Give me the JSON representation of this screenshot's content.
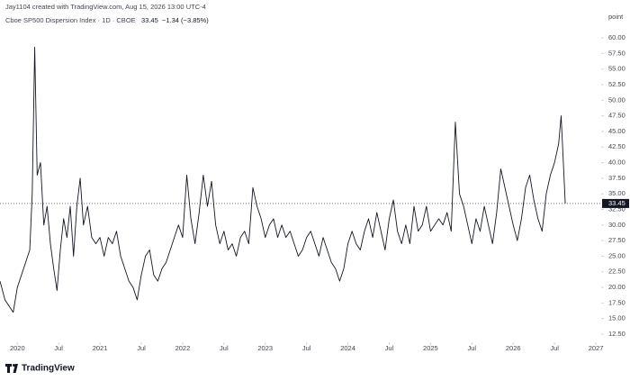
{
  "header": {
    "credit": "Jay1104 created with TradingView.com, Aug 15, 2026 13:00 UTC-4"
  },
  "chart_data": {
    "type": "line",
    "legend": {
      "symbol": "Cboe SP500 Dispersion Index · 1D · CBOE",
      "last": "33.45",
      "change": "−1.34 (−3.85%)"
    },
    "y_axis_label": "point",
    "x": [
      2019.79,
      2019.85,
      2019.9,
      2019.95,
      2020.0,
      2020.05,
      2020.1,
      2020.15,
      2020.18,
      2020.21,
      2020.24,
      2020.28,
      2020.32,
      2020.36,
      2020.4,
      2020.44,
      2020.48,
      2020.52,
      2020.56,
      2020.6,
      2020.64,
      2020.68,
      2020.72,
      2020.76,
      2020.8,
      2020.85,
      2020.9,
      2020.95,
      2021.0,
      2021.05,
      2021.1,
      2021.15,
      2021.2,
      2021.25,
      2021.3,
      2021.35,
      2021.4,
      2021.45,
      2021.5,
      2021.55,
      2021.6,
      2021.65,
      2021.7,
      2021.75,
      2021.8,
      2021.85,
      2021.9,
      2021.95,
      2022.0,
      2022.05,
      2022.1,
      2022.15,
      2022.2,
      2022.25,
      2022.3,
      2022.35,
      2022.4,
      2022.45,
      2022.5,
      2022.55,
      2022.6,
      2022.65,
      2022.7,
      2022.75,
      2022.8,
      2022.85,
      2022.9,
      2022.95,
      2023.0,
      2023.05,
      2023.1,
      2023.15,
      2023.2,
      2023.25,
      2023.3,
      2023.35,
      2023.4,
      2023.45,
      2023.5,
      2023.55,
      2023.6,
      2023.65,
      2023.7,
      2023.75,
      2023.8,
      2023.85,
      2023.9,
      2023.95,
      2024.0,
      2024.05,
      2024.1,
      2024.15,
      2024.2,
      2024.25,
      2024.3,
      2024.35,
      2024.4,
      2024.45,
      2024.5,
      2024.55,
      2024.6,
      2024.65,
      2024.7,
      2024.75,
      2024.8,
      2024.85,
      2024.9,
      2024.95,
      2025.0,
      2025.05,
      2025.1,
      2025.15,
      2025.2,
      2025.25,
      2025.3,
      2025.35,
      2025.4,
      2025.45,
      2025.5,
      2025.55,
      2025.6,
      2025.65,
      2025.7,
      2025.75,
      2025.8,
      2025.85,
      2025.9,
      2025.95,
      2026.0,
      2026.05,
      2026.1,
      2026.15,
      2026.2,
      2026.25,
      2026.3,
      2026.35,
      2026.4,
      2026.45,
      2026.5,
      2026.55,
      2026.58,
      2026.6,
      2026.63
    ],
    "series": [
      {
        "color": "#131722",
        "values": [
          21,
          18,
          17,
          16,
          20,
          22,
          24,
          26,
          35,
          58.5,
          38,
          40,
          30,
          33,
          27,
          23,
          19.5,
          26,
          31,
          28,
          33,
          25,
          33,
          37.5,
          30,
          33,
          28,
          27,
          28,
          25,
          28,
          27,
          29,
          25,
          23,
          21,
          20,
          18,
          22,
          25,
          26,
          22,
          21,
          23,
          24,
          26,
          28,
          30,
          28,
          38,
          31,
          27,
          32,
          38,
          33,
          37,
          30,
          27,
          29,
          26,
          27,
          25,
          28,
          29,
          27,
          36,
          33,
          31,
          28,
          30,
          31,
          28,
          30,
          28,
          29,
          27,
          25,
          26,
          28,
          29,
          27,
          25,
          28,
          26,
          24,
          23,
          21,
          23,
          27,
          29,
          27,
          26,
          29,
          31,
          28,
          32,
          29,
          26,
          31,
          34,
          29,
          27,
          30,
          27,
          33,
          29,
          30,
          33,
          29,
          30,
          31,
          30,
          32,
          29,
          46.5,
          35,
          33,
          30,
          27,
          31,
          29,
          33,
          30,
          27,
          32,
          39,
          36,
          33,
          30,
          27.5,
          31,
          36,
          38,
          34,
          31,
          29,
          35,
          38,
          40,
          43,
          47.5,
          42,
          33.45
        ]
      }
    ],
    "xlim": [
      2019.79,
      2027.065
    ],
    "xticks": [
      {
        "value": 2020,
        "label": "2020"
      },
      {
        "value": 2020.5,
        "label": "Jul"
      },
      {
        "value": 2021,
        "label": "2021"
      },
      {
        "value": 2021.5,
        "label": "Jul"
      },
      {
        "value": 2022,
        "label": "2022"
      },
      {
        "value": 2022.5,
        "label": "Jul"
      },
      {
        "value": 2023,
        "label": "2023"
      },
      {
        "value": 2023.5,
        "label": "Jul"
      },
      {
        "value": 2024,
        "label": "2024"
      },
      {
        "value": 2024.5,
        "label": "Jul"
      },
      {
        "value": 2025,
        "label": "2025"
      },
      {
        "value": 2025.5,
        "label": "Jul"
      },
      {
        "value": 2026,
        "label": "2026"
      },
      {
        "value": 2026.5,
        "label": "Jul"
      },
      {
        "value": 2027,
        "label": "2027"
      }
    ],
    "ylim": [
      11.2,
      64.05
    ],
    "yticks": [
      {
        "value": 12.5,
        "label": "12.50"
      },
      {
        "value": 15,
        "label": "15.00"
      },
      {
        "value": 17.5,
        "label": "17.50"
      },
      {
        "value": 20,
        "label": "20.00"
      },
      {
        "value": 22.5,
        "label": "22.50"
      },
      {
        "value": 25,
        "label": "25.00"
      },
      {
        "value": 27.5,
        "label": "27.50"
      },
      {
        "value": 30,
        "label": "30.00"
      },
      {
        "value": 32.5,
        "label": "32.50"
      },
      {
        "value": 35,
        "label": "35.00"
      },
      {
        "value": 37.5,
        "label": "37.50"
      },
      {
        "value": 40,
        "label": "40.00"
      },
      {
        "value": 42.5,
        "label": "42.50"
      },
      {
        "value": 45,
        "label": "45.00"
      },
      {
        "value": 47.5,
        "label": "47.50"
      },
      {
        "value": 50,
        "label": "50.00"
      },
      {
        "value": 52.5,
        "label": "52.50"
      },
      {
        "value": 55,
        "label": "55.00"
      },
      {
        "value": 57.5,
        "label": "57.50"
      },
      {
        "value": 60,
        "label": "60.00"
      }
    ],
    "grid": false
  },
  "footer": {
    "brand": "TradingView"
  }
}
